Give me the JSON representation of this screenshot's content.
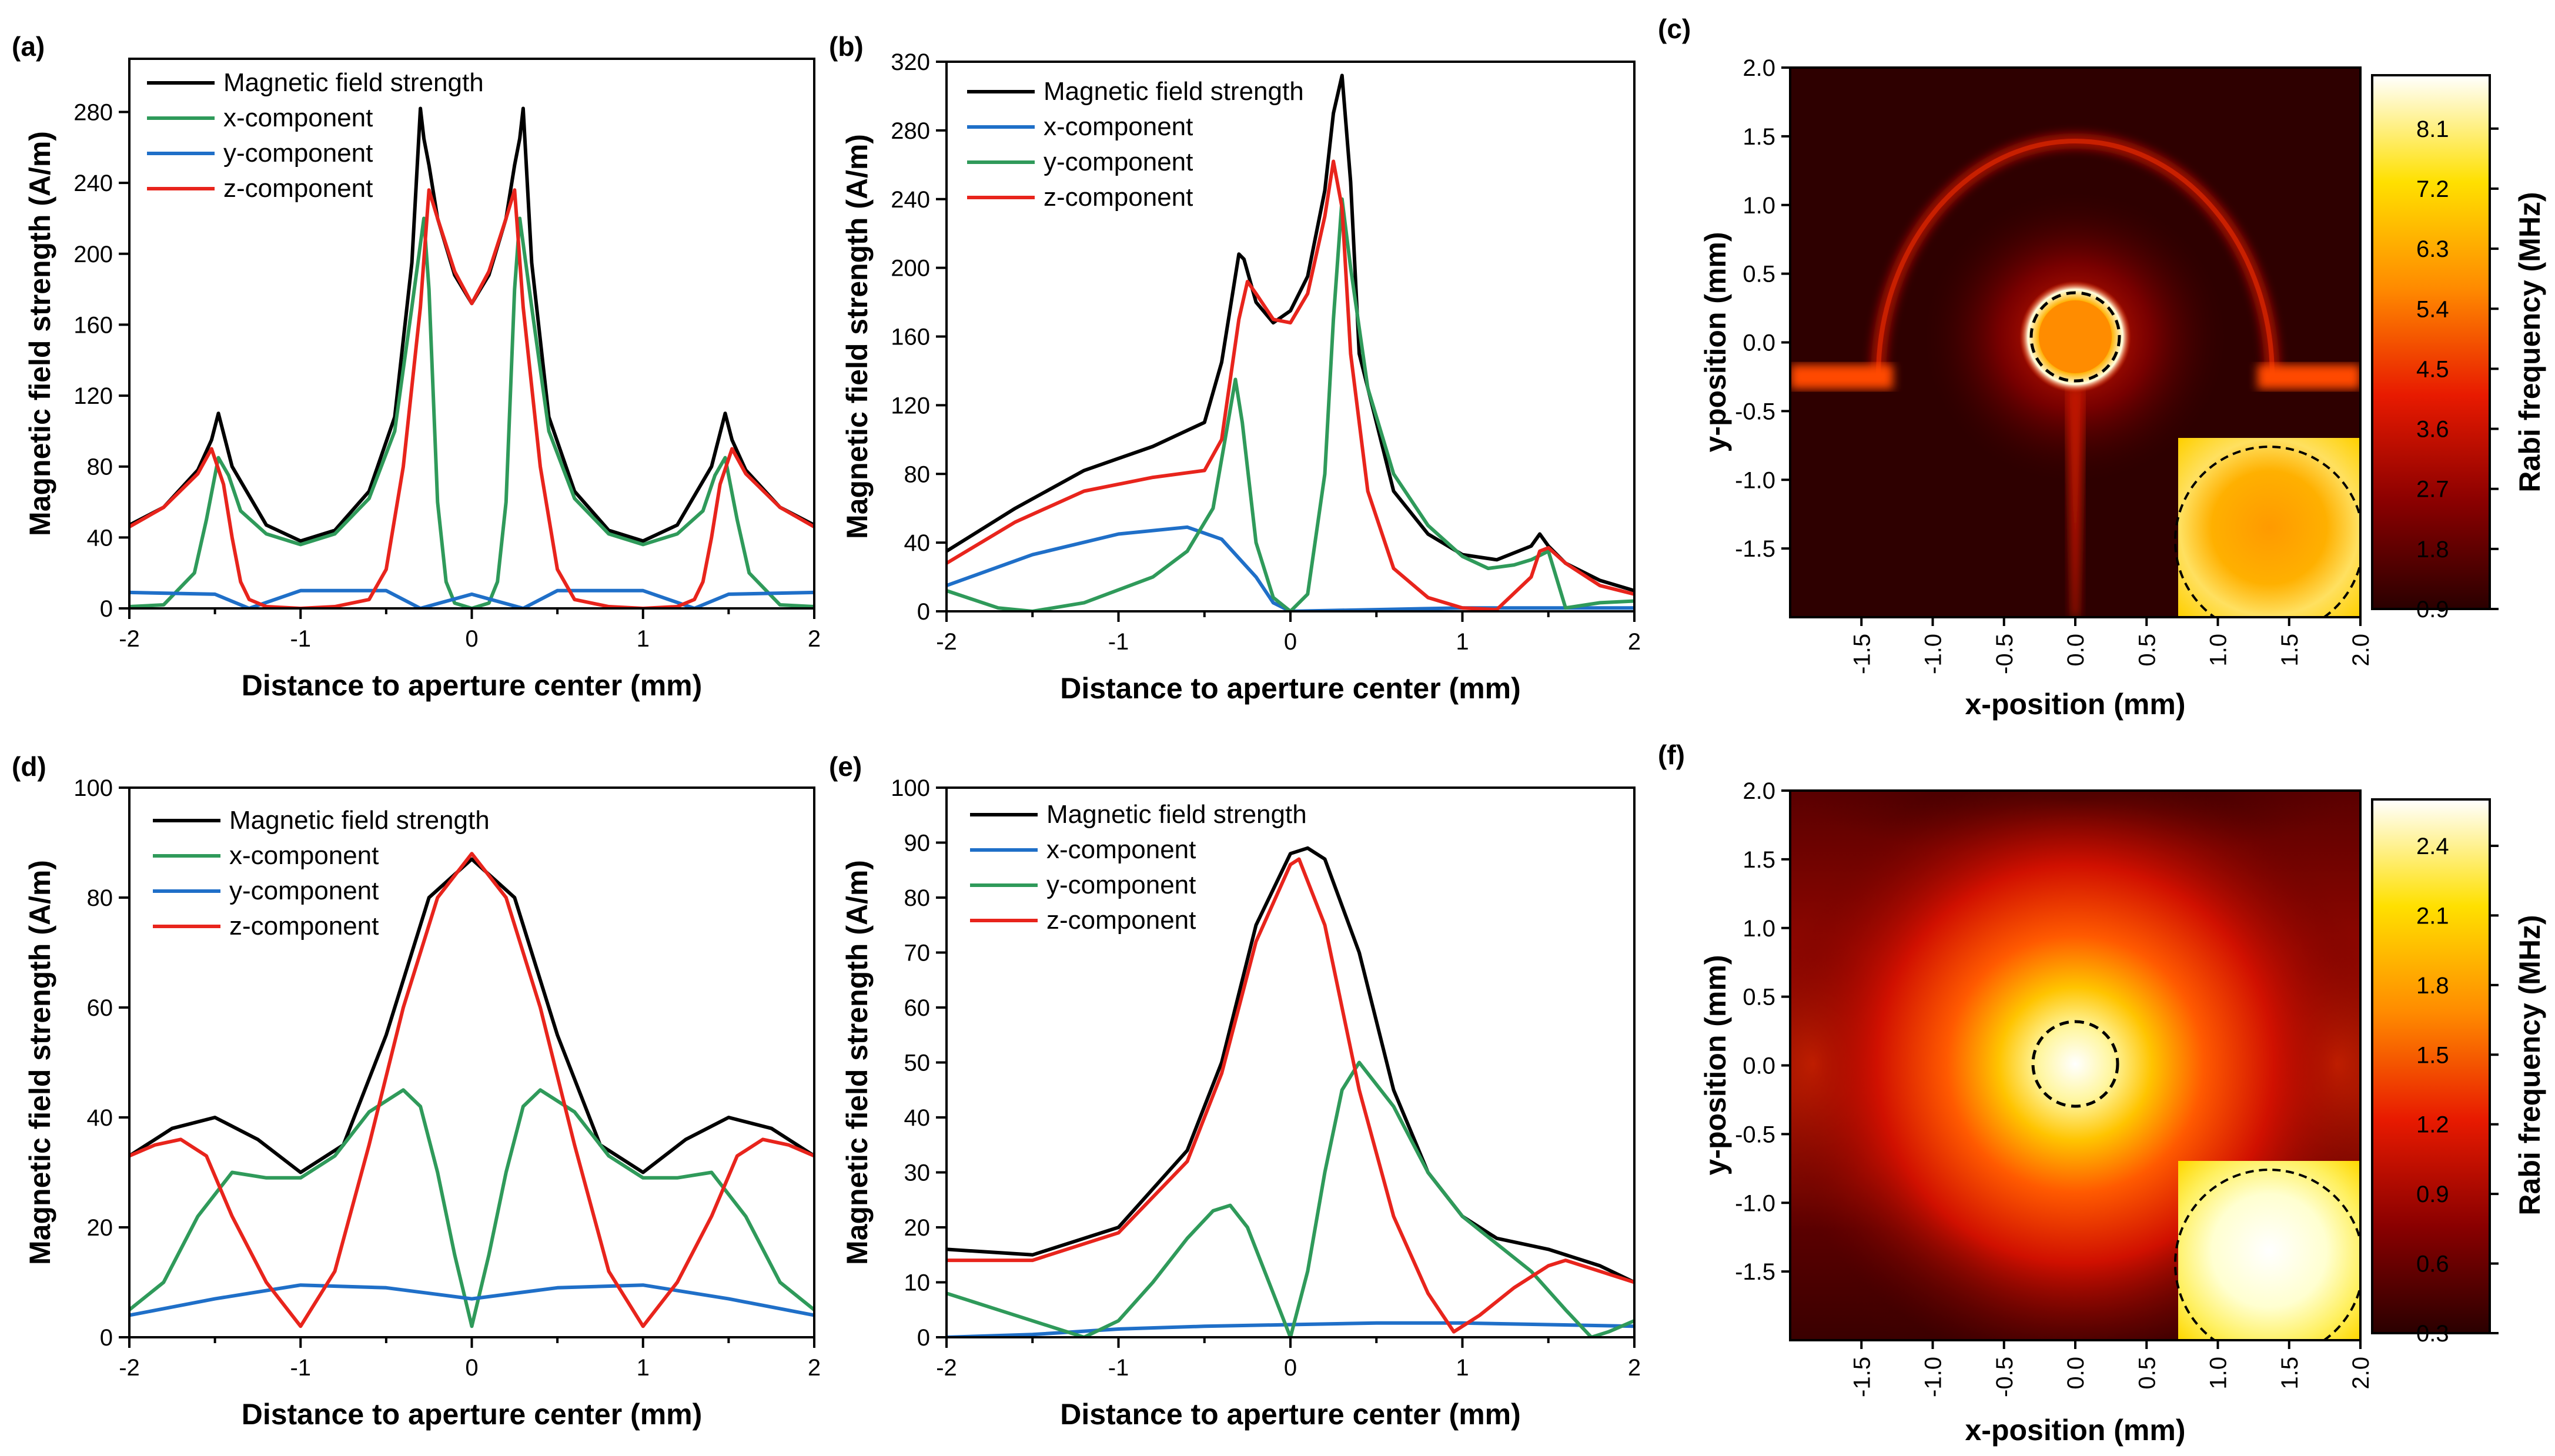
{
  "chart_data": [
    {
      "id": "a",
      "type": "line",
      "panel_label": "(a)",
      "xlabel": "Distance to aperture center (mm)",
      "ylabel": "Magnetic field strength (A/m)",
      "xlim": [
        -2,
        2
      ],
      "ylim": [
        0,
        310
      ],
      "xticks": [
        -2,
        -1,
        0,
        1,
        2
      ],
      "yticks": [
        0,
        40,
        80,
        120,
        160,
        200,
        240,
        280
      ],
      "series": [
        {
          "name": "Magnetic field strength",
          "color": "#000000",
          "x": [
            -2,
            -1.8,
            -1.6,
            -1.52,
            -1.48,
            -1.4,
            -1.2,
            -1.0,
            -0.8,
            -0.6,
            -0.45,
            -0.35,
            -0.3,
            -0.28,
            -0.25,
            -0.2,
            -0.1,
            0,
            0.1,
            0.2,
            0.25,
            0.28,
            0.3,
            0.35,
            0.45,
            0.6,
            0.8,
            1.0,
            1.2,
            1.4,
            1.48,
            1.52,
            1.6,
            1.8,
            2
          ],
          "y": [
            47,
            57,
            78,
            95,
            110,
            80,
            47,
            38,
            44,
            66,
            108,
            195,
            282,
            265,
            250,
            220,
            188,
            172,
            188,
            220,
            250,
            265,
            282,
            195,
            108,
            66,
            44,
            38,
            47,
            80,
            110,
            95,
            78,
            57,
            47
          ]
        },
        {
          "name": "x-component",
          "color": "#2f9a5a",
          "x": [
            -2,
            -1.8,
            -1.62,
            -1.55,
            -1.48,
            -1.42,
            -1.35,
            -1.2,
            -1.0,
            -0.8,
            -0.6,
            -0.45,
            -0.35,
            -0.28,
            -0.25,
            -0.2,
            -0.15,
            -0.1,
            0,
            0.1,
            0.15,
            0.2,
            0.25,
            0.28,
            0.35,
            0.45,
            0.6,
            0.8,
            1.0,
            1.2,
            1.35,
            1.42,
            1.48,
            1.55,
            1.62,
            1.8,
            2
          ],
          "y": [
            1,
            2,
            20,
            50,
            85,
            75,
            55,
            42,
            36,
            42,
            62,
            100,
            170,
            220,
            180,
            60,
            15,
            3,
            0,
            3,
            15,
            60,
            180,
            220,
            170,
            100,
            62,
            42,
            36,
            42,
            55,
            75,
            85,
            50,
            20,
            2,
            1
          ]
        },
        {
          "name": "y-component",
          "color": "#1f6fc8",
          "x": [
            -2,
            -1.5,
            -1.3,
            -1,
            -0.5,
            -0.3,
            0,
            0.3,
            0.5,
            1,
            1.3,
            1.5,
            2
          ],
          "y": [
            9,
            8,
            0,
            10,
            10,
            0,
            8,
            0,
            10,
            10,
            0,
            8,
            9
          ]
        },
        {
          "name": "z-component",
          "color": "#e8241c",
          "x": [
            -2,
            -1.8,
            -1.6,
            -1.52,
            -1.45,
            -1.4,
            -1.35,
            -1.3,
            -1.2,
            -1.0,
            -0.8,
            -0.6,
            -0.5,
            -0.4,
            -0.3,
            -0.25,
            -0.2,
            -0.1,
            0,
            0.1,
            0.2,
            0.25,
            0.3,
            0.4,
            0.5,
            0.6,
            0.8,
            1.0,
            1.2,
            1.3,
            1.35,
            1.4,
            1.45,
            1.52,
            1.6,
            1.8,
            2
          ],
          "y": [
            46,
            57,
            76,
            90,
            70,
            40,
            15,
            5,
            1,
            0,
            1,
            5,
            22,
            80,
            170,
            236,
            220,
            190,
            172,
            190,
            220,
            236,
            170,
            80,
            22,
            5,
            1,
            0,
            1,
            5,
            15,
            40,
            70,
            90,
            76,
            57,
            46
          ]
        }
      ]
    },
    {
      "id": "b",
      "type": "line",
      "panel_label": "(b)",
      "xlabel": "Distance to aperture center (mm)",
      "ylabel": "Magnetic field strength (A/m)",
      "xlim": [
        -2,
        2
      ],
      "ylim": [
        0,
        320
      ],
      "xticks": [
        -2,
        -1,
        0,
        1,
        2
      ],
      "yticks": [
        0,
        40,
        80,
        120,
        160,
        200,
        240,
        280,
        320
      ],
      "series": [
        {
          "name": "Magnetic field strength",
          "color": "#000000",
          "x": [
            -2,
            -1.6,
            -1.2,
            -0.8,
            -0.5,
            -0.4,
            -0.3,
            -0.27,
            -0.2,
            -0.1,
            0,
            0.1,
            0.2,
            0.25,
            0.3,
            0.35,
            0.4,
            0.6,
            0.8,
            1.0,
            1.2,
            1.4,
            1.45,
            1.5,
            1.6,
            1.8,
            2
          ],
          "y": [
            35,
            60,
            82,
            96,
            110,
            145,
            208,
            205,
            180,
            168,
            175,
            195,
            245,
            290,
            312,
            250,
            150,
            70,
            45,
            33,
            30,
            38,
            45,
            38,
            28,
            18,
            12
          ]
        },
        {
          "name": "x-component",
          "color": "#1f6fc8",
          "x": [
            -2,
            -1.5,
            -1,
            -0.6,
            -0.4,
            -0.2,
            -0.1,
            0,
            0.5,
            1,
            1.5,
            2
          ],
          "y": [
            15,
            33,
            45,
            49,
            42,
            20,
            5,
            0,
            1,
            2,
            2,
            2
          ]
        },
        {
          "name": "y-component",
          "color": "#2f9a5a",
          "x": [
            -2,
            -1.7,
            -1.5,
            -1.2,
            -0.8,
            -0.6,
            -0.45,
            -0.38,
            -0.32,
            -0.28,
            -0.2,
            -0.1,
            0,
            0.1,
            0.2,
            0.25,
            0.3,
            0.35,
            0.45,
            0.6,
            0.8,
            1.0,
            1.15,
            1.3,
            1.4,
            1.5,
            1.6,
            1.8,
            2
          ],
          "y": [
            12,
            2,
            0,
            5,
            20,
            35,
            60,
            100,
            135,
            110,
            40,
            8,
            0,
            10,
            80,
            170,
            240,
            200,
            130,
            80,
            50,
            32,
            25,
            27,
            30,
            35,
            2,
            5,
            6
          ]
        },
        {
          "name": "z-component",
          "color": "#e8241c",
          "x": [
            -2,
            -1.6,
            -1.2,
            -0.8,
            -0.5,
            -0.4,
            -0.3,
            -0.25,
            -0.2,
            -0.1,
            0,
            0.1,
            0.2,
            0.25,
            0.3,
            0.35,
            0.45,
            0.6,
            0.8,
            1.0,
            1.2,
            1.4,
            1.45,
            1.5,
            1.6,
            1.8,
            2
          ],
          "y": [
            28,
            52,
            70,
            78,
            82,
            100,
            170,
            192,
            185,
            170,
            168,
            185,
            230,
            262,
            235,
            150,
            70,
            25,
            8,
            2,
            1,
            20,
            35,
            37,
            28,
            15,
            10
          ]
        }
      ]
    },
    {
      "id": "d",
      "type": "line",
      "panel_label": "(d)",
      "xlabel": "Distance to aperture center (mm)",
      "ylabel": "Magnetic field strength (A/m)",
      "xlim": [
        -2,
        2
      ],
      "ylim": [
        0,
        100
      ],
      "xticks": [
        -2,
        -1,
        0,
        1,
        2
      ],
      "yticks": [
        0,
        20,
        40,
        60,
        80,
        100
      ],
      "series": [
        {
          "name": "Magnetic field strength",
          "color": "#000000",
          "x": [
            -2,
            -1.75,
            -1.5,
            -1.25,
            -1.0,
            -0.75,
            -0.5,
            -0.25,
            0,
            0.25,
            0.5,
            0.75,
            1.0,
            1.25,
            1.5,
            1.75,
            2
          ],
          "y": [
            33,
            38,
            40,
            36,
            30,
            35,
            55,
            80,
            87,
            80,
            55,
            35,
            30,
            36,
            40,
            38,
            33
          ]
        },
        {
          "name": "x-component",
          "color": "#2f9a5a",
          "x": [
            -2,
            -1.8,
            -1.6,
            -1.4,
            -1.2,
            -1.0,
            -0.8,
            -0.6,
            -0.4,
            -0.3,
            -0.2,
            -0.1,
            0,
            0.1,
            0.2,
            0.3,
            0.4,
            0.6,
            0.8,
            1.0,
            1.2,
            1.4,
            1.6,
            1.8,
            2
          ],
          "y": [
            5,
            10,
            22,
            30,
            29,
            29,
            33,
            41,
            45,
            42,
            30,
            15,
            2,
            15,
            30,
            42,
            45,
            41,
            33,
            29,
            29,
            30,
            22,
            10,
            5
          ]
        },
        {
          "name": "y-component",
          "color": "#1f6fc8",
          "x": [
            -2,
            -1.5,
            -1,
            -0.5,
            0,
            0.5,
            1,
            1.5,
            2
          ],
          "y": [
            4,
            7,
            9.5,
            9,
            7,
            9,
            9.5,
            7,
            4
          ]
        },
        {
          "name": "z-component",
          "color": "#e8241c",
          "x": [
            -2,
            -1.85,
            -1.7,
            -1.55,
            -1.4,
            -1.2,
            -1.0,
            -0.8,
            -0.6,
            -0.4,
            -0.2,
            0,
            0.2,
            0.4,
            0.6,
            0.8,
            1.0,
            1.2,
            1.4,
            1.55,
            1.7,
            1.85,
            2
          ],
          "y": [
            33,
            35,
            36,
            33,
            22,
            10,
            2,
            12,
            35,
            60,
            80,
            88,
            80,
            60,
            35,
            12,
            2,
            10,
            22,
            33,
            36,
            35,
            33
          ]
        }
      ]
    },
    {
      "id": "e",
      "type": "line",
      "panel_label": "(e)",
      "xlabel": "Distance to aperture center (mm)",
      "ylabel": "Magnetic field strength (A/m)",
      "xlim": [
        -2,
        2
      ],
      "ylim": [
        0,
        100
      ],
      "xticks": [
        -2,
        -1,
        0,
        1,
        2
      ],
      "yticks": [
        0,
        10,
        20,
        30,
        40,
        50,
        60,
        70,
        80,
        90,
        100
      ],
      "series": [
        {
          "name": "Magnetic field strength",
          "color": "#000000",
          "x": [
            -2,
            -1.5,
            -1.0,
            -0.6,
            -0.4,
            -0.2,
            0,
            0.1,
            0.2,
            0.4,
            0.6,
            0.8,
            1.0,
            1.2,
            1.5,
            1.8,
            2
          ],
          "y": [
            16,
            15,
            20,
            34,
            50,
            75,
            88,
            89,
            87,
            70,
            45,
            30,
            22,
            18,
            16,
            13,
            10
          ]
        },
        {
          "name": "x-component",
          "color": "#1f6fc8",
          "x": [
            -2,
            -1.5,
            -1,
            -0.5,
            0,
            0.5,
            1,
            1.5,
            2
          ],
          "y": [
            0,
            0.5,
            1.5,
            2,
            2.3,
            2.6,
            2.6,
            2.3,
            2
          ]
        },
        {
          "name": "y-component",
          "color": "#2f9a5a",
          "x": [
            -2,
            -1.7,
            -1.4,
            -1.2,
            -1.0,
            -0.8,
            -0.6,
            -0.45,
            -0.35,
            -0.25,
            -0.1,
            0,
            0.1,
            0.2,
            0.3,
            0.4,
            0.6,
            0.8,
            1.0,
            1.2,
            1.4,
            1.6,
            1.75,
            1.85,
            2
          ],
          "y": [
            8,
            5,
            2,
            0,
            3,
            10,
            18,
            23,
            24,
            20,
            8,
            0,
            12,
            30,
            45,
            50,
            42,
            30,
            22,
            17,
            12,
            5,
            0,
            1,
            3
          ]
        },
        {
          "name": "z-component",
          "color": "#e8241c",
          "x": [
            -2,
            -1.5,
            -1.0,
            -0.6,
            -0.4,
            -0.2,
            0,
            0.05,
            0.2,
            0.4,
            0.6,
            0.8,
            0.95,
            1.1,
            1.3,
            1.5,
            1.6,
            1.8,
            2
          ],
          "y": [
            14,
            14,
            19,
            32,
            48,
            72,
            86,
            87,
            75,
            45,
            22,
            8,
            1,
            4,
            9,
            13,
            14,
            12,
            10
          ]
        }
      ]
    },
    {
      "id": "c",
      "type": "heatmap",
      "panel_label": "(c)",
      "xlabel": "x-position (mm)",
      "ylabel": "y-position (mm)",
      "colorbar_label": "Rabi frequency (MHz)",
      "xlim": [
        -2,
        2
      ],
      "ylim": [
        -2,
        2
      ],
      "xticks": [
        "-1.5",
        "-1.0",
        "-0.5",
        "0.0",
        "0.5",
        "1.0",
        "1.5",
        "2.0"
      ],
      "yticks": [
        "2.0",
        "1.5",
        "1.0",
        "0.5",
        "0.0",
        "-0.5",
        "-1.0",
        "-1.5"
      ],
      "colorbar_ticks": [
        "0.9",
        "1.8",
        "2.7",
        "3.6",
        "4.5",
        "5.4",
        "6.3",
        "7.2",
        "8.1"
      ],
      "colorbar_range": [
        0.9,
        8.9
      ]
    },
    {
      "id": "f",
      "type": "heatmap",
      "panel_label": "(f)",
      "xlabel": "x-position (mm)",
      "ylabel": "y-position (mm)",
      "colorbar_label": "Rabi frequency (MHz)",
      "xlim": [
        -2,
        2
      ],
      "ylim": [
        -2,
        2
      ],
      "xticks": [
        "-1.5",
        "-1.0",
        "-0.5",
        "0.0",
        "0.5",
        "1.0",
        "1.5",
        "2.0"
      ],
      "yticks": [
        "2.0",
        "1.5",
        "1.0",
        "0.5",
        "0.0",
        "-0.5",
        "-1.0",
        "-1.5"
      ],
      "colorbar_ticks": [
        "0.3",
        "0.6",
        "0.9",
        "1.2",
        "1.5",
        "1.8",
        "2.1",
        "2.4"
      ],
      "colorbar_range": [
        0.3,
        2.6
      ]
    }
  ]
}
